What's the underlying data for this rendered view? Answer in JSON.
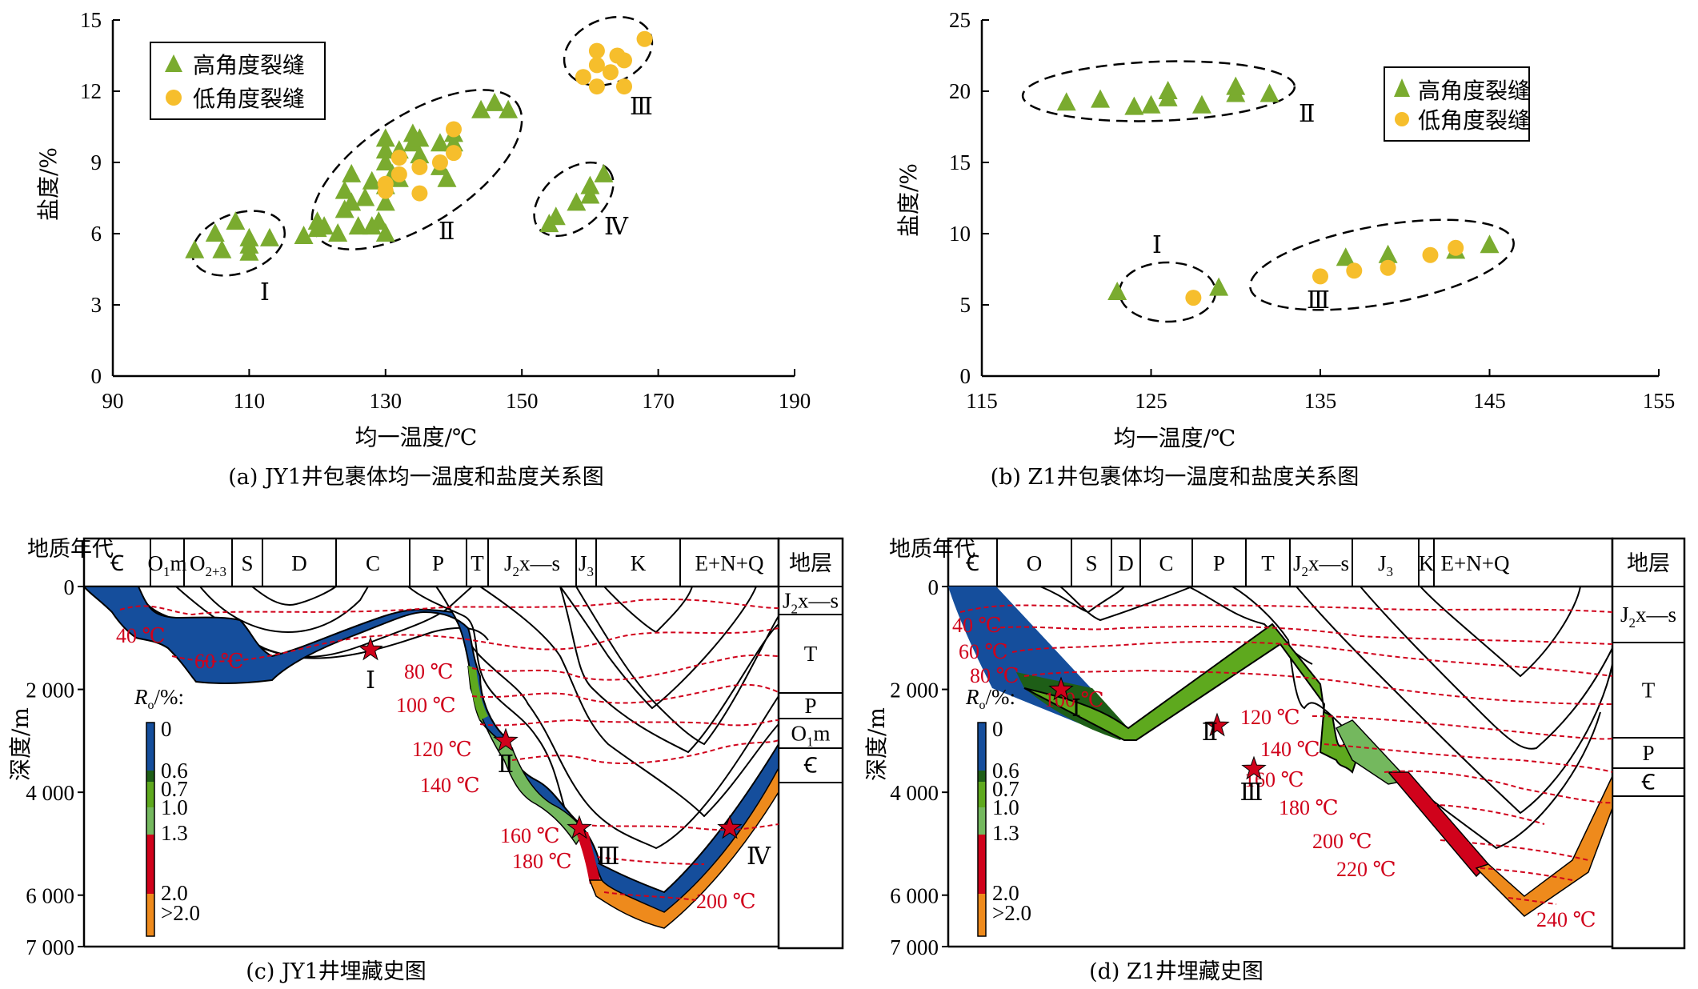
{
  "colors": {
    "high_angle": "#7aab2f",
    "low_angle": "#f6be2c",
    "isotherm": "#d0021b",
    "star": "#d0021b"
  },
  "chart_data": [
    {
      "id": "a",
      "type": "scatter",
      "title": "(a) JY1井包裹体均一温度和盐度关系图",
      "xlabel": "均一温度/℃",
      "ylabel": "盐度/%",
      "xlim": [
        90,
        190
      ],
      "ylim": [
        0,
        15
      ],
      "xticks": [
        90,
        110,
        130,
        150,
        170,
        190
      ],
      "yticks": [
        0,
        3,
        6,
        9,
        12,
        15
      ],
      "legend_position": "top-left",
      "series": [
        {
          "name": "高角度裂缝",
          "marker": "triangle",
          "points": [
            [
              102,
              5.3
            ],
            [
              105,
              6.0
            ],
            [
              106,
              5.3
            ],
            [
              108,
              6.5
            ],
            [
              110,
              5.5
            ],
            [
              110,
              5.8
            ],
            [
              110,
              5.2
            ],
            [
              113,
              5.8
            ],
            [
              118,
              5.9
            ],
            [
              120,
              6.5
            ],
            [
              120,
              6.2
            ],
            [
              121,
              6.3
            ],
            [
              123,
              6.0
            ],
            [
              124,
              7.0
            ],
            [
              124,
              7.8
            ],
            [
              125,
              7.3
            ],
            [
              125,
              8.5
            ],
            [
              126,
              6.3
            ],
            [
              127,
              7.5
            ],
            [
              128,
              6.3
            ],
            [
              128,
              8.2
            ],
            [
              129,
              6.5
            ],
            [
              130,
              6.0
            ],
            [
              130,
              7.3
            ],
            [
              130,
              8.0
            ],
            [
              130,
              9.0
            ],
            [
              130,
              9.5
            ],
            [
              130,
              10.0
            ],
            [
              131,
              8.5
            ],
            [
              132,
              8.3
            ],
            [
              132,
              9.5
            ],
            [
              134,
              9.8
            ],
            [
              134,
              10.2
            ],
            [
              135,
              10.0
            ],
            [
              135,
              9.3
            ],
            [
              138,
              9.8
            ],
            [
              138,
              8.8
            ],
            [
              139,
              8.3
            ],
            [
              140,
              10.2
            ],
            [
              140,
              9.8
            ],
            [
              144,
              11.2
            ],
            [
              146,
              11.5
            ],
            [
              148,
              11.2
            ],
            [
              154,
              6.4
            ],
            [
              155,
              6.7
            ],
            [
              158,
              7.3
            ],
            [
              160,
              8.0
            ],
            [
              160,
              7.6
            ],
            [
              162,
              8.5
            ]
          ]
        },
        {
          "name": "低角度裂缝",
          "marker": "circle",
          "points": [
            [
              130,
              7.8
            ],
            [
              130,
              8.1
            ],
            [
              132,
              8.5
            ],
            [
              132,
              9.2
            ],
            [
              135,
              8.8
            ],
            [
              135,
              7.7
            ],
            [
              138,
              9.0
            ],
            [
              140,
              9.4
            ],
            [
              140,
              10.4
            ],
            [
              159,
              12.6
            ],
            [
              161,
              13.7
            ],
            [
              161,
              13.1
            ],
            [
              161,
              12.2
            ],
            [
              163,
              12.8
            ],
            [
              164,
              13.5
            ],
            [
              165,
              12.2
            ],
            [
              165,
              13.3
            ],
            [
              168,
              14.2
            ]
          ]
        }
      ],
      "groups": [
        {
          "label": "Ⅰ",
          "members": "高角度裂缝 ~102–113℃, 5–6.5%"
        },
        {
          "label": "Ⅱ",
          "members": "高/低角度裂缝 ~118–148℃, 6–11.5%"
        },
        {
          "label": "Ⅲ",
          "members": "低角度裂缝 ~158–168℃, 12–14.2%"
        },
        {
          "label": "Ⅳ",
          "members": "高角度裂缝 ~154–162℃, 6.4–8.5%"
        }
      ]
    },
    {
      "id": "b",
      "type": "scatter",
      "title": "(b) Z1井包裹体均一温度和盐度关系图",
      "xlabel": "均一温度/℃",
      "ylabel": "盐度/%",
      "xlim": [
        115,
        155
      ],
      "ylim": [
        0,
        25
      ],
      "xticks": [
        115,
        125,
        135,
        145,
        155
      ],
      "yticks": [
        0,
        5,
        10,
        15,
        20,
        25
      ],
      "legend_position": "top-right",
      "series": [
        {
          "name": "高角度裂缝",
          "marker": "triangle",
          "points": [
            [
              120,
              19.2
            ],
            [
              122,
              19.4
            ],
            [
              124,
              18.9
            ],
            [
              125,
              19.0
            ],
            [
              126,
              19.5
            ],
            [
              126,
              20.0
            ],
            [
              128,
              19.0
            ],
            [
              130,
              19.8
            ],
            [
              130,
              20.3
            ],
            [
              132,
              19.8
            ],
            [
              123,
              5.9
            ],
            [
              129,
              6.2
            ],
            [
              136.5,
              8.3
            ],
            [
              139,
              8.5
            ],
            [
              143,
              8.8
            ],
            [
              145,
              9.2
            ]
          ]
        },
        {
          "name": "低角度裂缝",
          "marker": "circle",
          "points": [
            [
              127.5,
              5.5
            ],
            [
              135,
              7.0
            ],
            [
              137,
              7.4
            ],
            [
              139,
              7.6
            ],
            [
              141.5,
              8.5
            ],
            [
              143,
              9.0
            ]
          ]
        }
      ],
      "groups": [
        {
          "label": "Ⅰ",
          "members": "~123–129℃, 5.5–6.2%"
        },
        {
          "label": "Ⅱ",
          "members": "~120–132℃, 19–20.3%"
        },
        {
          "label": "Ⅲ",
          "members": "~135–145℃, 7–9.2%"
        }
      ]
    },
    {
      "id": "c",
      "type": "area",
      "title": "(c) JY1井埋藏史图",
      "ylabel": "深度/m",
      "ylim": [
        0,
        7000
      ],
      "yticks": [
        0,
        2000,
        4000,
        6000,
        7000
      ],
      "ytick_labels": [
        "0",
        "2 000",
        "4 000",
        "6 000",
        "7 000"
      ],
      "age_header": "地质年代",
      "ages": [
        "-C",
        "O1m",
        "O2+3",
        "S",
        "D",
        "C",
        "P",
        "T",
        "J2x—s",
        "J3",
        "K",
        "E+N+Q"
      ],
      "strata_header": "地层",
      "strata": [
        "J2x—s",
        "T",
        "P",
        "O1m",
        "-C"
      ],
      "ro_legend_title": "Ro/%:",
      "ro_legend": [
        {
          "label": "0",
          "color": "#154e9c"
        },
        {
          "label": "0.6",
          "color": "#1e5e17"
        },
        {
          "label": "0.7",
          "color": "#5ea91e"
        },
        {
          "label": "1.0",
          "color": "#74b85e"
        },
        {
          "label": "1.3",
          "color": "#d0021b"
        },
        {
          "label": "2.0",
          "color": "#ee8a1c"
        },
        {
          "label": ">2.0",
          "color": "#ee8a1c"
        }
      ],
      "isotherms": [
        "40 ℃",
        "60 ℃",
        "80 ℃",
        "100 ℃",
        "120 ℃",
        "140 ℃",
        "160 ℃",
        "180 ℃",
        "200 ℃"
      ],
      "events": [
        "Ⅰ",
        "Ⅱ",
        "Ⅲ",
        "Ⅳ"
      ]
    },
    {
      "id": "d",
      "type": "area",
      "title": "(d) Z1井埋藏史图",
      "ylabel": "深度/m",
      "ylim": [
        0,
        7000
      ],
      "yticks": [
        0,
        2000,
        4000,
        6000,
        7000
      ],
      "ytick_labels": [
        "0",
        "2 000",
        "4 000",
        "6 000",
        "7 000"
      ],
      "age_header": "地质年代",
      "ages": [
        "-C",
        "O",
        "S",
        "D",
        "C",
        "P",
        "T",
        "J2x—s",
        "J3",
        "K",
        "E+N+Q"
      ],
      "strata_header": "地层",
      "strata": [
        "J2x—s",
        "T",
        "P",
        "-C"
      ],
      "ro_legend_title": "Ro/%:",
      "ro_legend": [
        {
          "label": "0",
          "color": "#154e9c"
        },
        {
          "label": "0.6",
          "color": "#1e5e17"
        },
        {
          "label": "0.7",
          "color": "#5ea91e"
        },
        {
          "label": "1.0",
          "color": "#74b85e"
        },
        {
          "label": "1.3",
          "color": "#d0021b"
        },
        {
          "label": "2.0",
          "color": "#ee8a1c"
        },
        {
          "label": ">2.0",
          "color": "#ee8a1c"
        }
      ],
      "isotherms": [
        "40 ℃",
        "60 ℃",
        "80 ℃",
        "100 ℃",
        "120 ℃",
        "140 ℃",
        "160 ℃",
        "180 ℃",
        "200 ℃",
        "220 ℃",
        "240 ℃"
      ],
      "events": [
        "Ⅰ",
        "Ⅱ",
        "Ⅲ"
      ]
    }
  ]
}
